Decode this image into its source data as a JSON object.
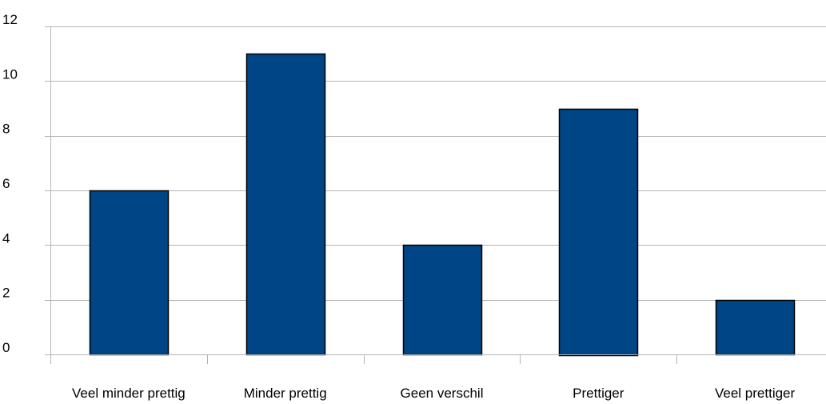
{
  "chart_data": {
    "type": "bar",
    "title": "",
    "xlabel": "",
    "ylabel": "",
    "categories": [
      "Veel minder prettig",
      "Minder prettig",
      "Geen verschil",
      "Prettiger",
      "Veel prettiger"
    ],
    "values": [
      6,
      11,
      4,
      9,
      2
    ],
    "ylim": [
      0,
      12
    ],
    "yticks": [
      "0",
      "2",
      "4",
      "6",
      "8",
      "10",
      "12"
    ],
    "grid": true,
    "legend": "none",
    "bar_color": "#004586",
    "bar_border_color": "#000000",
    "grid_color": "#b3b3b3"
  }
}
